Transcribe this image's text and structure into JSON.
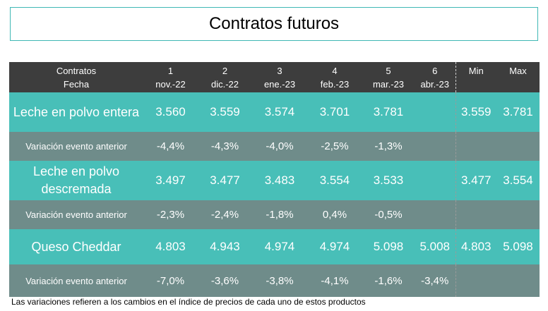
{
  "title": "Contratos futuros",
  "header": {
    "label_top": "Contratos",
    "label_bottom": "Fecha",
    "contracts": [
      {
        "num": "1",
        "date": "nov.-22"
      },
      {
        "num": "2",
        "date": "dic.-22"
      },
      {
        "num": "3",
        "date": "ene.-23"
      },
      {
        "num": "4",
        "date": "feb.-23"
      },
      {
        "num": "5",
        "date": "mar.-23"
      },
      {
        "num": "6",
        "date": "abr.-23"
      }
    ],
    "min": "Min",
    "max": "Max"
  },
  "rows": [
    {
      "product": "Leche en polvo entera",
      "values": [
        "3.560",
        "3.559",
        "3.574",
        "3.701",
        "3.781",
        ""
      ],
      "min": "3.559",
      "max": "3.781",
      "variation_label": "Variación evento anterior",
      "variations": [
        "-4,4%",
        "-4,3%",
        "-4,0%",
        "-2,5%",
        "-1,3%",
        ""
      ]
    },
    {
      "product": "Leche en polvo descremada",
      "values": [
        "3.497",
        "3.477",
        "3.483",
        "3.554",
        "3.533",
        ""
      ],
      "min": "3.477",
      "max": "3.554",
      "variation_label": "Variación evento anterior",
      "variations": [
        "-2,3%",
        "-2,4%",
        "-1,8%",
        "0,4%",
        "-0,5%",
        ""
      ]
    },
    {
      "product": "Queso Cheddar",
      "values": [
        "4.803",
        "4.943",
        "4.974",
        "4.974",
        "5.098",
        "5.008"
      ],
      "min": "4.803",
      "max": "5.098",
      "variation_label": "Variación evento anterior",
      "variations": [
        "-7,0%",
        "-3,6%",
        "-3,8%",
        "-4,1%",
        "-1,6%",
        "-3,4%"
      ]
    }
  ],
  "footnote": "Las variaciones refieren a los cambios en el índice de precios de cada uno de estos productos"
}
